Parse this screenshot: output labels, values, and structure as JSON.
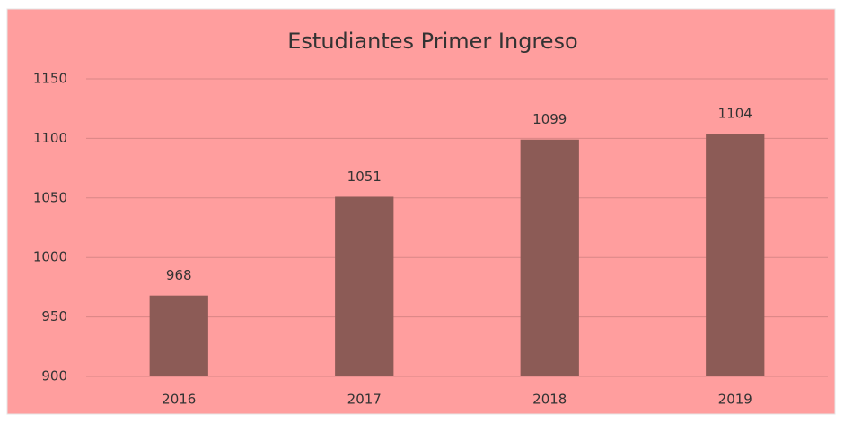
{
  "chart_data": {
    "type": "bar",
    "title": "Estudiantes Primer Ingreso",
    "categories": [
      "2016",
      "2017",
      "2018",
      "2019"
    ],
    "values": [
      968,
      1051,
      1099,
      1104
    ],
    "color": "#8c5b56",
    "ylim": [
      900,
      1150
    ],
    "yticks": [
      900,
      950,
      1000,
      1050,
      1100,
      1150
    ],
    "grid": true
  }
}
